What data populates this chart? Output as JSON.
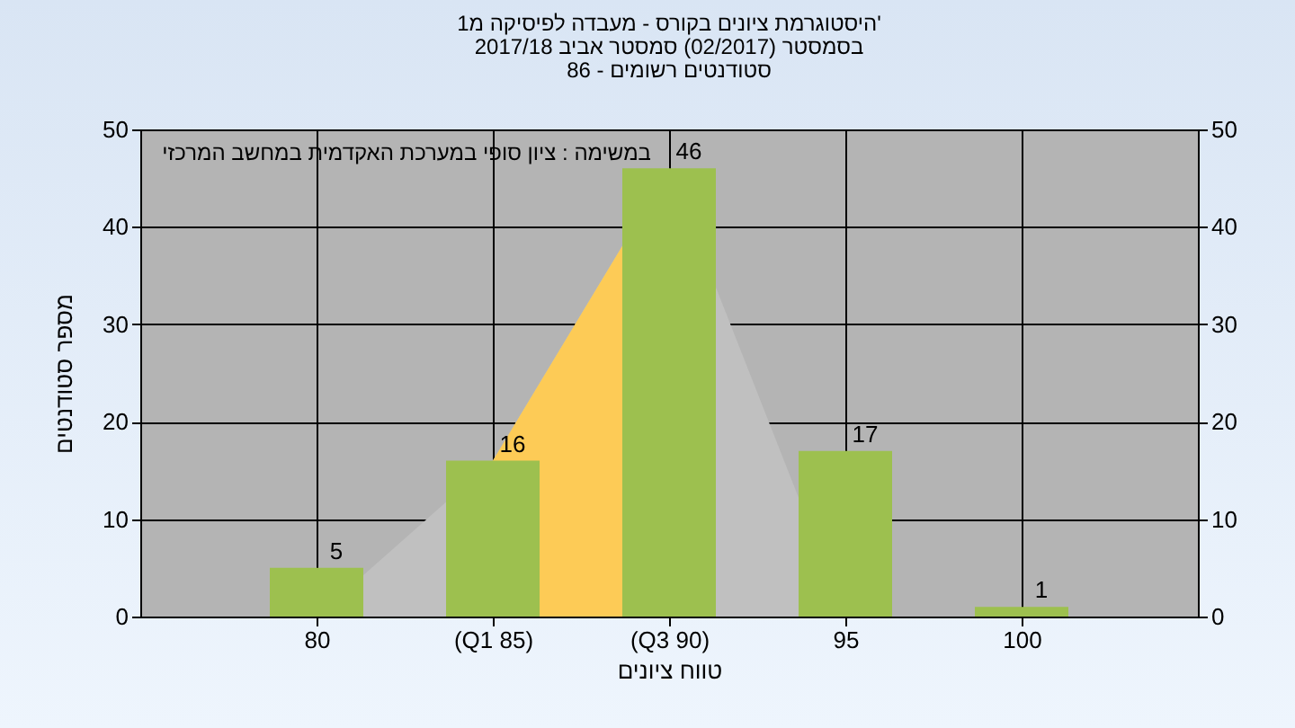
{
  "chart_data": {
    "type": "bar",
    "title": [
      "היסטוגרמת ציונים בקורס - מעבדה לפיסיקה מ1'",
      "בסמסטר (02/2017) סמסטר אביב 2017/18",
      "86 - סטודנטים רשומים"
    ],
    "xlabel": "טווח ציונים",
    "ylabel": "מספר סטודנטים",
    "annotations": [
      "במשימה : ציון סופי במערכת האקדמית במחשב המרכזי"
    ],
    "categories": [
      "80",
      "(Q1 85)",
      "(Q3 90)",
      "95",
      "100"
    ],
    "series": [
      {
        "type": "area",
        "color": "#c0c0c0",
        "values": [
          0,
          16,
          46,
          0,
          0
        ]
      },
      {
        "type": "area",
        "color": "#fdcb56",
        "values": [
          null,
          16,
          46,
          null,
          null
        ]
      },
      {
        "color": "#9dc04f",
        "values": [
          5,
          16,
          46,
          17,
          1
        ],
        "value_labels": [
          "5",
          "16",
          "46",
          "17",
          "1"
        ]
      }
    ],
    "ylim": [
      0,
      50
    ],
    "yticks": [
      0,
      10,
      20,
      30,
      40,
      50
    ],
    "y2lim": [
      0,
      50
    ],
    "y2ticks": [
      0,
      10,
      20,
      30,
      40,
      50
    ],
    "grid": true
  }
}
